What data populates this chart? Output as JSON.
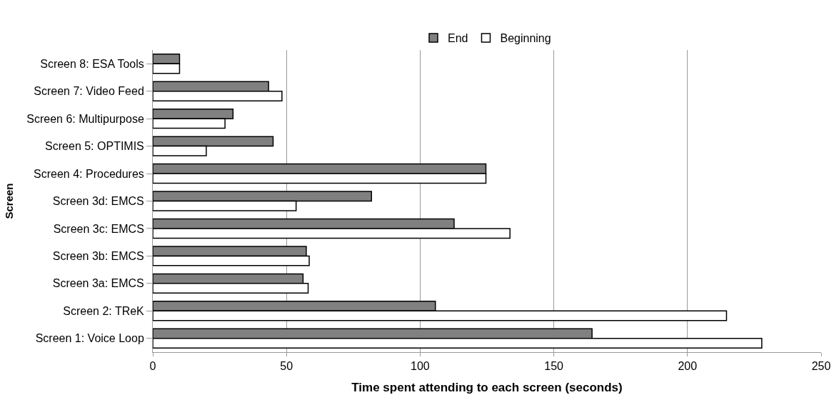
{
  "chart_data": {
    "type": "bar",
    "orientation": "horizontal",
    "xlabel": "Time spent attending to each screen (seconds)",
    "ylabel": "Screen",
    "categories": [
      "Screen 8: ESA Tools",
      "Screen 7: Video Feed",
      "Screen 6: Multipurpose",
      "Screen 5: OPTIMIS",
      "Screen 4: Procedures",
      "Screen 3d: EMCS",
      "Screen 3c: EMCS",
      "Screen 3b: EMCS",
      "Screen 3a: EMCS",
      "Screen 2: TReK",
      "Screen 1: Voice Loop"
    ],
    "series": [
      {
        "name": "End",
        "color": "#808080",
        "values": [
          10,
          43.3,
          30,
          45,
          124.6,
          81.8,
          112.7,
          57.4,
          56.2,
          105.7,
          164.3
        ]
      },
      {
        "name": "Beginning",
        "color": "#ffffff",
        "values": [
          10,
          48.3,
          27,
          20,
          124.6,
          53.6,
          133.6,
          58.5,
          58.1,
          214.6,
          227.8
        ]
      }
    ],
    "xlim": [
      0,
      250
    ],
    "xticks": [
      0,
      50,
      100,
      150,
      200,
      250
    ],
    "grid": "x",
    "legend": "top"
  }
}
